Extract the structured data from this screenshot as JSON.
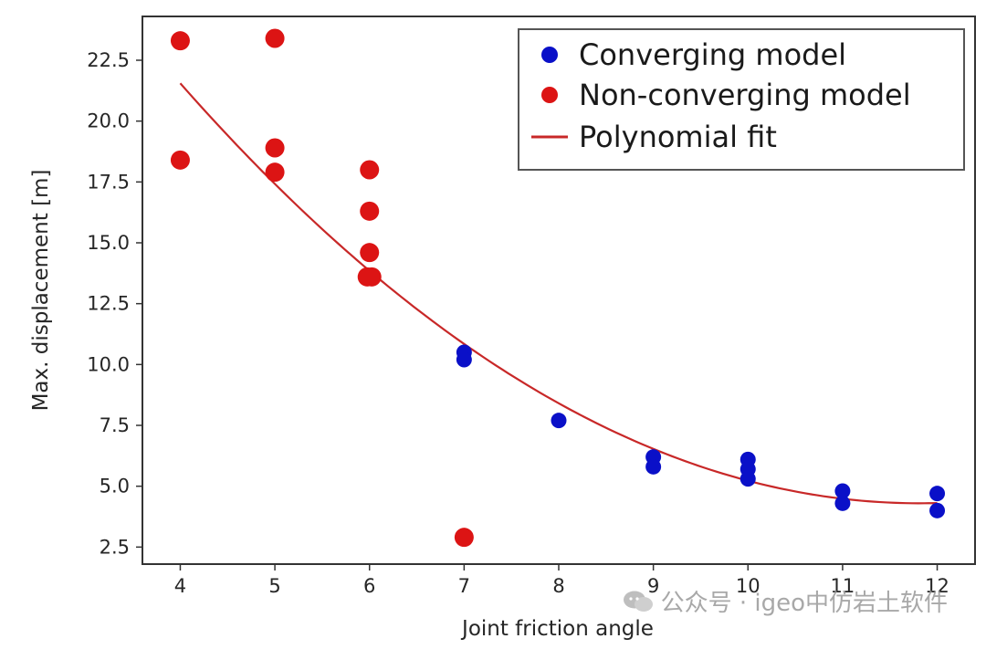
{
  "chart_data": {
    "type": "scatter",
    "xlabel": "Joint friction angle",
    "ylabel": "Max. displacement [m]",
    "xlim": [
      3.6,
      12.4
    ],
    "ylim": [
      1.8,
      24.3
    ],
    "xticks": [
      4,
      5,
      6,
      7,
      8,
      9,
      10,
      11,
      12
    ],
    "xtick_labels": [
      "4",
      "5",
      "6",
      "7",
      "8",
      "9",
      "10",
      "11",
      "12"
    ],
    "yticks": [
      2.5,
      5.0,
      7.5,
      10.0,
      12.5,
      15.0,
      17.5,
      20.0,
      22.5
    ],
    "ytick_labels": [
      "2.5",
      "5.0",
      "7.5",
      "10.0",
      "12.5",
      "15.0",
      "17.5",
      "20.0",
      "22.5"
    ],
    "grid": false,
    "legend_position": "top-right",
    "series": [
      {
        "name": "Converging model",
        "kind": "scatter",
        "color": "#0a10c8",
        "x": [
          7,
          7,
          8,
          9,
          9,
          10,
          10,
          10,
          11,
          11,
          12,
          12
        ],
        "y": [
          10.5,
          10.2,
          7.7,
          6.2,
          5.8,
          6.1,
          5.7,
          5.3,
          4.8,
          4.3,
          4.7,
          4.0
        ]
      },
      {
        "name": "Non-converging model",
        "kind": "scatter",
        "color": "#dc1414",
        "x": [
          4,
          4,
          5,
          5,
          5,
          6,
          6,
          6,
          6,
          7
        ],
        "y": [
          23.3,
          18.4,
          23.4,
          18.9,
          17.9,
          18.0,
          16.3,
          14.6,
          13.6,
          2.9
        ],
        "markers_per_point": [
          1,
          1,
          1,
          1,
          1,
          1,
          1,
          1,
          2,
          1
        ]
      },
      {
        "name": "Polynomial fit",
        "kind": "line",
        "color": "#c82828",
        "coefficients_a_b_c": [
          0.2828,
          -6.6804,
          43.7508
        ],
        "x_range": [
          4,
          12
        ]
      }
    ]
  },
  "watermark": {
    "text": "公众号 · igeo中仿岩土软件",
    "icon": "wechat-icon"
  }
}
